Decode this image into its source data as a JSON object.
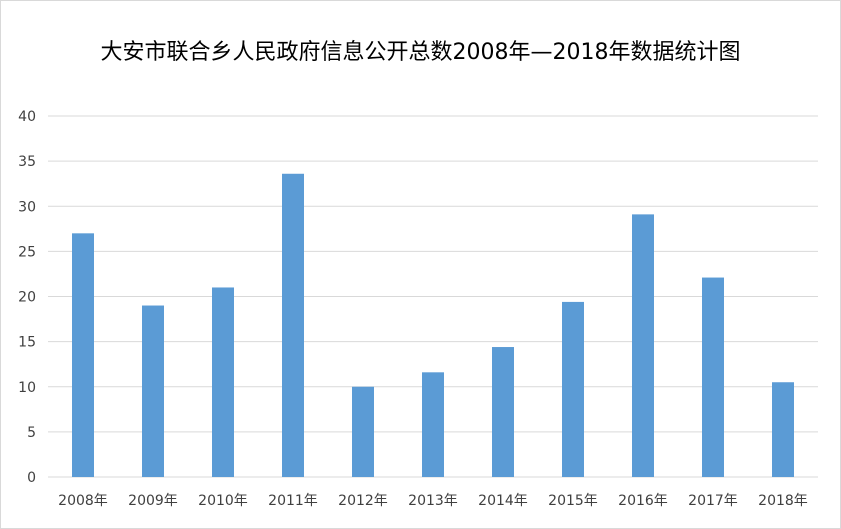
{
  "chart_data": {
    "type": "bar",
    "title": "大安市联合乡人民政府信息公开总数2008年—2018年数据统计图",
    "xlabel": "",
    "ylabel": "",
    "categories": [
      "2008年",
      "2009年",
      "2010年",
      "2011年",
      "2012年",
      "2013年",
      "2014年",
      "2015年",
      "2016年",
      "2017年",
      "2018年"
    ],
    "values": [
      27,
      19,
      21,
      33.6,
      10,
      11.6,
      14.4,
      19.4,
      29.1,
      22.1,
      10.5
    ],
    "ylim": [
      0,
      40
    ],
    "yticks": [
      "0",
      "5",
      "10",
      "15",
      "20",
      "25",
      "30",
      "35",
      "40"
    ],
    "grid": true,
    "legend": "none",
    "colors": {
      "bar": "#5b9bd5",
      "grid": "#d9d9d9",
      "text": "#404040"
    }
  }
}
